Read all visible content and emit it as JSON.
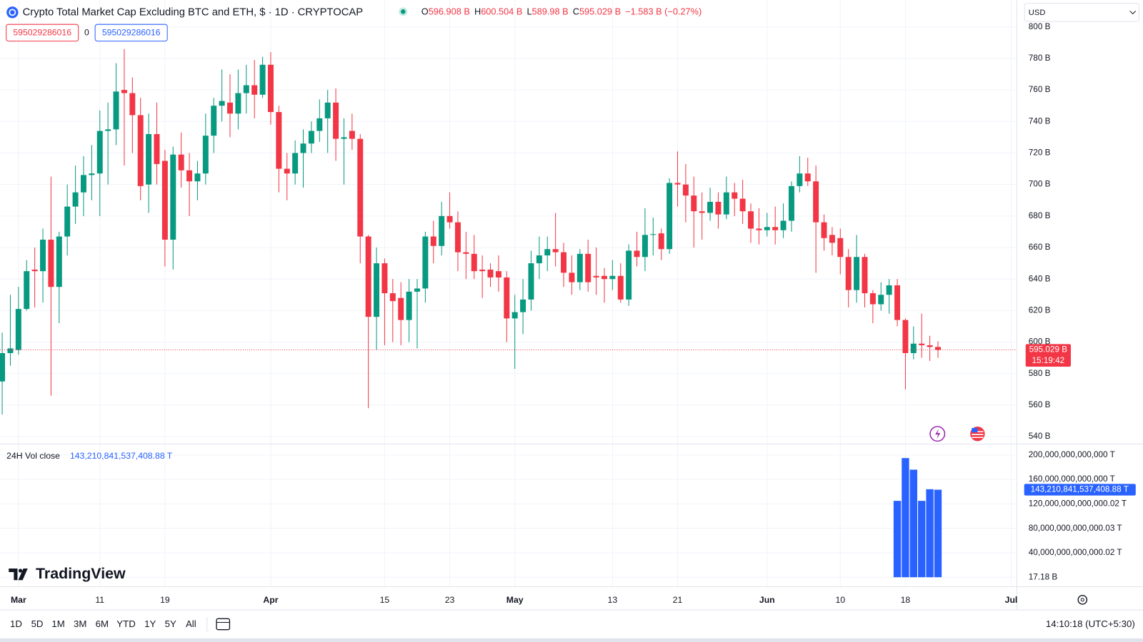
{
  "header": {
    "title": "Crypto Total Market Cap Excluding BTC and ETH, $ · 1D · CRYPTOCAP",
    "ohlc": [
      {
        "label": "O",
        "value": "596.908 B"
      },
      {
        "label": "H",
        "value": "600.504 B"
      },
      {
        "label": "L",
        "value": "589.98 B"
      },
      {
        "label": "C",
        "value": "595.029 B"
      }
    ],
    "change": "−1.583 B (−0.27%)",
    "sell": "595029286016",
    "spread": "0",
    "buy": "595029286016"
  },
  "currency": "USD",
  "logo": "TradingView",
  "toolbar": {
    "ranges": [
      "1D",
      "5D",
      "1M",
      "3M",
      "6M",
      "YTD",
      "1Y",
      "5Y",
      "All"
    ],
    "clock": "14:10:18 (UTC+5:30)"
  },
  "chart_data": [
    {
      "type": "candlestick",
      "up_color": "#089981",
      "down_color": "#f23645",
      "grid": true,
      "xlim": [
        -0.27,
        124.7
      ],
      "xticks": [
        {
          "value": 2,
          "label": "Mar"
        },
        {
          "value": 12,
          "label": "11"
        },
        {
          "value": 20,
          "label": "19"
        },
        {
          "value": 33,
          "label": "Apr"
        },
        {
          "value": 47,
          "label": "15"
        },
        {
          "value": 55,
          "label": "23"
        },
        {
          "value": 63,
          "label": "May"
        },
        {
          "value": 75,
          "label": "13"
        },
        {
          "value": 83,
          "label": "21"
        },
        {
          "value": 94,
          "label": "Jun"
        },
        {
          "value": 103,
          "label": "10"
        },
        {
          "value": 111,
          "label": "18"
        },
        {
          "value": 124,
          "label": "Jul"
        }
      ],
      "ylim": [
        535.3,
        817.1
      ],
      "yticks": [
        {
          "value": 540,
          "label": "540 B"
        },
        {
          "value": 560,
          "label": "560 B"
        },
        {
          "value": 580,
          "label": "580 B"
        },
        {
          "value": 600,
          "label": "600 B"
        },
        {
          "value": 620,
          "label": "620 B"
        },
        {
          "value": 640,
          "label": "640 B"
        },
        {
          "value": 660,
          "label": "660 B"
        },
        {
          "value": 680,
          "label": "680 B"
        },
        {
          "value": 700,
          "label": "700 B"
        },
        {
          "value": 720,
          "label": "720 B"
        },
        {
          "value": 740,
          "label": "740 B"
        },
        {
          "value": 760,
          "label": "760 B"
        },
        {
          "value": 780,
          "label": "780 B"
        },
        {
          "value": 800,
          "label": "800 B"
        }
      ],
      "open": [
        575,
        593,
        595,
        621,
        646,
        645,
        665,
        635,
        667,
        686,
        695,
        706,
        707,
        734,
        735,
        760,
        758,
        744,
        700,
        732,
        715,
        665,
        719,
        709,
        702,
        707,
        731,
        750,
        752,
        745,
        758,
        763,
        757,
        776,
        746,
        710,
        707,
        720,
        726,
        734,
        742,
        752,
        729,
        734,
        729,
        667,
        616,
        650,
        631,
        628,
        614,
        632,
        634,
        667,
        661,
        680,
        676,
        657,
        656,
        646,
        646,
        645,
        641,
        615,
        619,
        627,
        650,
        655,
        659,
        657,
        644,
        638,
        656,
        642,
        642,
        640,
        642,
        627,
        658,
        654,
        668,
        669,
        659,
        701,
        700,
        693,
        683,
        682,
        689,
        681,
        695,
        691,
        683,
        672,
        671,
        673,
        671,
        677,
        699,
        707,
        702,
        676,
        668,
        666,
        654,
        633,
        654,
        631,
        624,
        630,
        636,
        614,
        593,
        599,
        598,
        596.908
      ],
      "high": [
        606,
        630,
        635,
        652,
        660,
        672,
        705,
        670,
        700,
        712,
        718,
        725,
        747,
        752,
        777,
        786,
        768,
        755,
        745,
        752,
        722,
        724,
        733,
        720,
        715,
        745,
        755,
        773,
        770,
        773,
        776,
        779,
        781,
        784,
        750,
        720,
        728,
        735,
        740,
        754,
        760,
        761,
        742,
        745,
        732,
        668,
        660,
        653,
        640,
        638,
        640,
        640,
        670,
        677,
        689,
        695,
        683,
        670,
        668,
        655,
        650,
        655,
        645,
        630,
        640,
        658,
        667,
        667,
        682,
        663,
        655,
        659,
        665,
        660,
        647,
        652,
        650,
        662,
        670,
        685,
        679,
        672,
        704,
        721,
        713,
        705,
        695,
        698,
        695,
        705,
        701,
        703,
        688,
        685,
        682,
        686,
        688,
        702,
        718,
        717,
        712,
        681,
        673,
        672,
        659,
        668,
        656,
        633,
        638,
        640,
        640,
        615,
        610,
        618,
        604,
        600.504
      ],
      "low": [
        554,
        585,
        592,
        620,
        622,
        625,
        566,
        612,
        655,
        675,
        680,
        690,
        680,
        700,
        725,
        712,
        720,
        690,
        682,
        700,
        648,
        646,
        698,
        680,
        690,
        700,
        720,
        740,
        730,
        735,
        745,
        742,
        755,
        738,
        695,
        690,
        700,
        698,
        720,
        727,
        720,
        715,
        700,
        722,
        650,
        558,
        595,
        598,
        600,
        598,
        600,
        596,
        625,
        650,
        655,
        672,
        645,
        640,
        640,
        628,
        635,
        632,
        600,
        583,
        605,
        620,
        640,
        645,
        648,
        635,
        630,
        633,
        632,
        630,
        625,
        633,
        625,
        623,
        648,
        645,
        655,
        652,
        656,
        686,
        676,
        660,
        665,
        677,
        672,
        678,
        680,
        675,
        663,
        662,
        667,
        662,
        666,
        670,
        695,
        699,
        644,
        658,
        655,
        643,
        622,
        625,
        622,
        612,
        620,
        618,
        610,
        570,
        589,
        590,
        588,
        589.98
      ],
      "close": [
        593,
        596,
        621,
        645,
        645,
        665,
        635,
        667,
        686,
        695,
        706,
        707,
        734,
        735,
        759,
        758,
        744,
        699,
        732,
        713,
        665,
        719,
        709,
        702,
        707,
        731,
        750,
        753,
        745,
        758,
        763,
        757,
        776,
        746,
        710,
        707,
        720,
        726,
        734,
        742,
        752,
        729,
        730,
        729,
        667,
        616,
        650,
        631,
        626,
        614,
        632,
        634,
        667,
        661,
        680,
        676,
        657,
        656,
        645,
        645,
        641,
        641,
        615,
        619,
        627,
        650,
        655,
        659,
        657,
        644,
        638,
        656,
        638,
        641,
        640,
        642,
        627,
        658,
        654,
        668,
        668.5,
        659,
        701,
        700,
        693,
        683,
        682,
        689,
        681,
        695,
        691,
        683,
        672,
        671,
        673,
        671,
        677,
        699,
        707,
        702,
        676,
        666,
        663,
        654,
        633,
        654,
        631,
        624,
        630,
        636,
        614,
        593,
        599,
        598,
        596.9,
        595.029
      ],
      "last_label": "595.029 B",
      "countdown": "15:19:42"
    },
    {
      "type": "bar",
      "title": "24H Vol close",
      "color": "#2962ff",
      "x": [
        110,
        111,
        112,
        113,
        114,
        115
      ],
      "values": [
        125000000000000,
        195000000000000,
        176000000000000,
        125000000000000,
        144000000000000,
        143210841537408.88
      ],
      "last_label": "143,210,841,537,408.88 T",
      "ylim": [
        0,
        218000000000000
      ],
      "yticks": [
        {
          "value": 0.01718,
          "label": "17.18 B"
        },
        {
          "value": 40000000000000.02,
          "label": "40,000,000,000,000.02 T"
        },
        {
          "value": 80000000000000.03,
          "label": "80,000,000,000,000.03 T"
        },
        {
          "value": 120000000000000.02,
          "label": "120,000,000,000,000.02 T"
        },
        {
          "value": 160000000000000,
          "label": "160,000,000,000,000 T"
        },
        {
          "value": 200000000000000,
          "label": "200,000,000,000,000 T"
        }
      ]
    }
  ]
}
